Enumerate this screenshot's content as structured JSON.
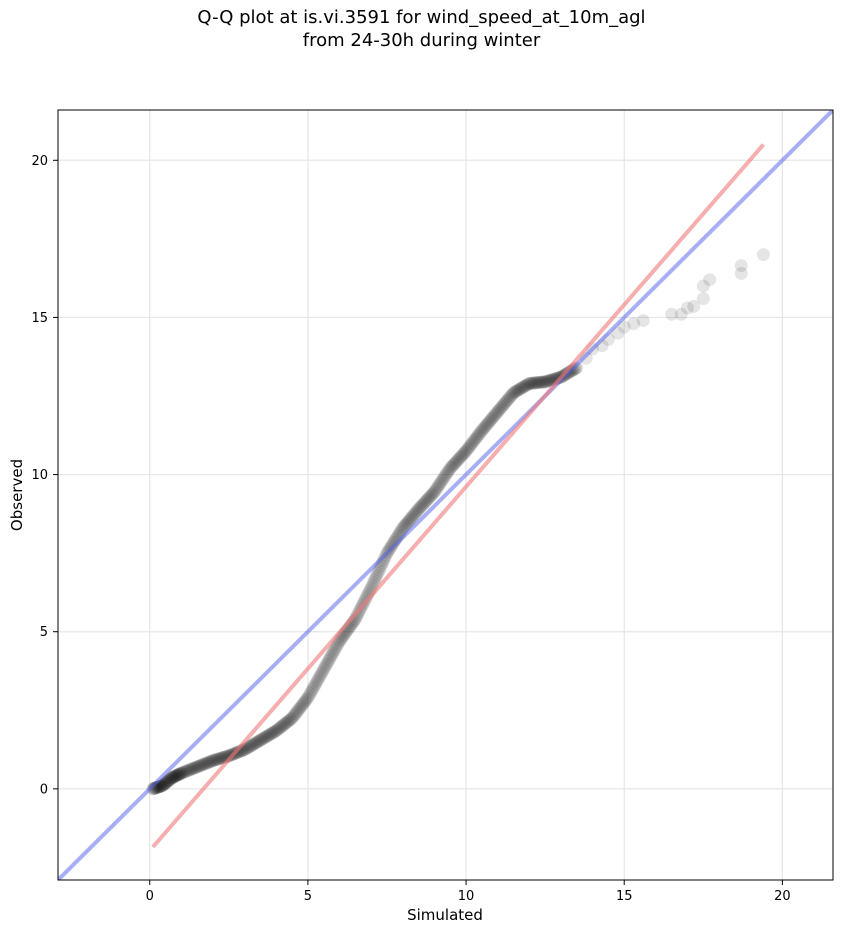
{
  "title_line1": "Q-Q plot at is.vi.3591 for wind_speed_at_10m_agl",
  "title_line2": "from 24-30h during winter",
  "chart_data": {
    "type": "scatter",
    "title": "Q-Q plot at is.vi.3591 for wind_speed_at_10m_agl from 24-30h during winter",
    "xlabel": "Simulated",
    "ylabel": "Observed",
    "xlim": [
      -2.9,
      21.6
    ],
    "ylim": [
      -2.9,
      21.6
    ],
    "xticks": [
      0,
      5,
      10,
      15,
      20
    ],
    "yticks": [
      0,
      5,
      10,
      15,
      20
    ],
    "grid": true,
    "point_color": "#000000",
    "identity_line_color": "#4f5ee8",
    "fit_line_color": "#f07878",
    "identity_line": {
      "x": [
        -2.9,
        21.6
      ],
      "y": [
        -2.9,
        21.6
      ]
    },
    "fit_line": {
      "x": [
        0.1,
        19.4
      ],
      "y": [
        -1.85,
        20.5
      ]
    },
    "quantile_curve": {
      "x": [
        0.1,
        0.4,
        0.7,
        1.0,
        1.5,
        2.0,
        2.5,
        3.0,
        3.5,
        4.0,
        4.5,
        5.0,
        5.5,
        6.0,
        6.5,
        7.0,
        7.5,
        8.0,
        8.5,
        9.0,
        9.5,
        10.0,
        10.5,
        11.0,
        11.5,
        12.0,
        12.5,
        13.0,
        13.5
      ],
      "y": [
        0.0,
        0.1,
        0.35,
        0.5,
        0.7,
        0.9,
        1.05,
        1.25,
        1.55,
        1.85,
        2.25,
        2.9,
        3.8,
        4.7,
        5.4,
        6.4,
        7.5,
        8.3,
        8.9,
        9.45,
        10.2,
        10.75,
        11.4,
        12.0,
        12.6,
        12.9,
        12.95,
        13.1,
        13.4
      ]
    },
    "tail_points": {
      "x": [
        13.8,
        14.0,
        14.3,
        14.5,
        14.8,
        15.0,
        15.3,
        15.6,
        16.5,
        16.8,
        17.0,
        17.2,
        17.5,
        17.5,
        17.7,
        18.7,
        18.7,
        19.4
      ],
      "y": [
        13.7,
        14.0,
        14.1,
        14.3,
        14.5,
        14.7,
        14.8,
        14.9,
        15.1,
        15.1,
        15.3,
        15.35,
        15.6,
        16.0,
        16.2,
        16.4,
        16.65,
        17.0
      ]
    }
  }
}
